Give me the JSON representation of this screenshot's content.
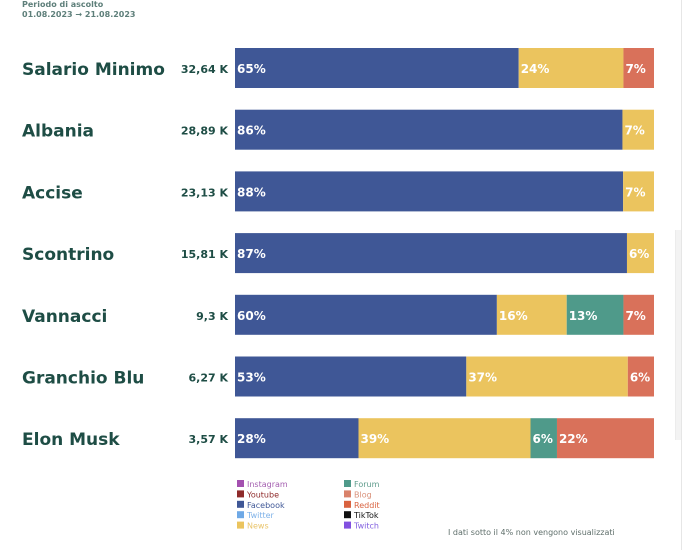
{
  "header": {
    "period_label": "Periodo di ascolto",
    "period_range": "01.08.2023 → 21.08.2023"
  },
  "note": "I dati sotto il 4% non vengono visualizzati",
  "chart_data": {
    "type": "bar",
    "orientation": "horizontal",
    "stacked": true,
    "normalized": true,
    "title": "",
    "xlabel": "",
    "ylabel": "",
    "categories": [
      "Salario Minimo",
      "Albania",
      "Accise",
      "Scontrino",
      "Vannacci",
      "Granchio Blu",
      "Elon Musk"
    ],
    "totals": [
      "32,64 K",
      "28,89 K",
      "23,13 K",
      "15,81 K",
      "9,3 K",
      "6,27 K",
      "3,57 K"
    ],
    "series": [
      {
        "name": "Facebook",
        "color": "#3f5796",
        "values": [
          65,
          86,
          88,
          87,
          60,
          53,
          28
        ]
      },
      {
        "name": "News",
        "color": "#ebc45e",
        "values": [
          24,
          7,
          7,
          6,
          16,
          37,
          39
        ]
      },
      {
        "name": "Forum",
        "color": "#4f9a8a",
        "values": [
          0,
          0,
          0,
          0,
          13,
          0,
          6
        ]
      },
      {
        "name": "Reddit",
        "color": "#d9715a",
        "values": [
          7,
          0,
          0,
          0,
          7,
          6,
          22
        ]
      }
    ],
    "hidden_threshold_percent": 4,
    "legend": {
      "position": "bottom",
      "items": [
        {
          "name": "Instagram",
          "color": "#a450b0",
          "text_color": "#a45fb0"
        },
        {
          "name": "Youtube",
          "color": "#8e2a2a",
          "text_color": "#8e2a2a"
        },
        {
          "name": "Facebook",
          "color": "#3f5796",
          "text_color": "#3f5796"
        },
        {
          "name": "Twitter",
          "color": "#6fa9e6",
          "text_color": "#7fb2e8"
        },
        {
          "name": "News",
          "color": "#ebc45e",
          "text_color": "#e9c46a"
        },
        {
          "name": "Forum",
          "color": "#4f9a8a",
          "text_color": "#5f9c8c"
        },
        {
          "name": "Blog",
          "color": "#d9826a",
          "text_color": "#d9917a"
        },
        {
          "name": "Reddit",
          "color": "#d9623f",
          "text_color": "#d9623f"
        },
        {
          "name": "TikTok",
          "color": "#111111",
          "text_color": "#111111"
        },
        {
          "name": "Twitch",
          "color": "#8250e0",
          "text_color": "#8260e0"
        }
      ]
    }
  }
}
